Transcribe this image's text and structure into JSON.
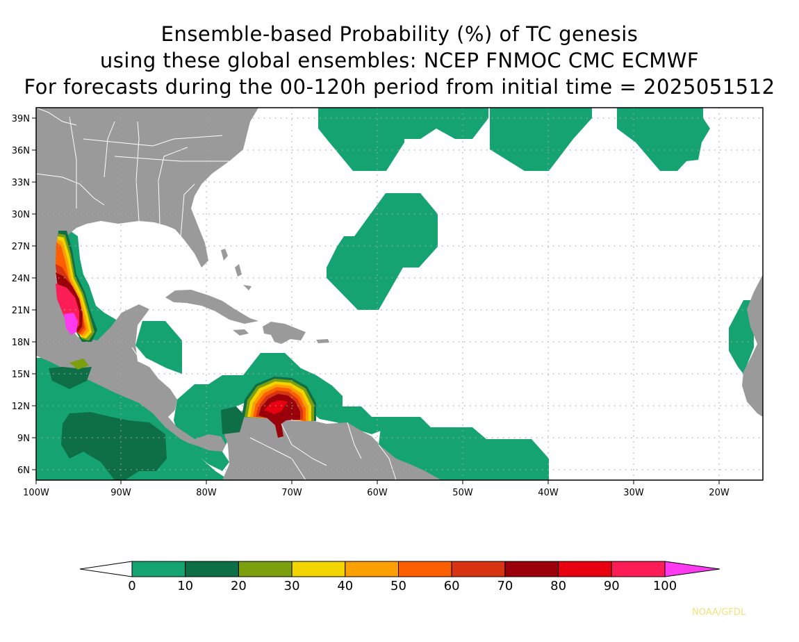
{
  "title": {
    "line1": "Ensemble-based Probability (%) of TC genesis",
    "line2": "using these global ensembles:   NCEP FNMOC CMC ECMWF",
    "line3": "For forecasts during the 00-120h period from initial time = 2025051512"
  },
  "credit": "NOAA/GFDL",
  "axes": {
    "lon_labels": [
      "100W",
      "90W",
      "80W",
      "70W",
      "60W",
      "50W",
      "40W",
      "30W",
      "20W"
    ],
    "lat_labels": [
      "39N",
      "36N",
      "33N",
      "30N",
      "27N",
      "24N",
      "21N",
      "18N",
      "15N",
      "12N",
      "9N",
      "6N"
    ],
    "lon_range": [
      -100,
      -15
    ],
    "lat_range": [
      5,
      40
    ],
    "grid": true
  },
  "colorbar": {
    "labels": [
      "0",
      "10",
      "20",
      "30",
      "40",
      "50",
      "60",
      "70",
      "80",
      "90",
      "100"
    ],
    "colors": [
      "#16a372",
      "#0e6e45",
      "#7b9f0d",
      "#f2d500",
      "#fba000",
      "#fc5f00",
      "#d63412",
      "#9a0009",
      "#e80010",
      "#fc1d57"
    ],
    "under_color": "#ffffff",
    "over_color": "#fc3aef"
  },
  "colors": {
    "land": "#9a9a9a",
    "ocean": "#ffffff",
    "boundaries": "#ffffff"
  }
}
